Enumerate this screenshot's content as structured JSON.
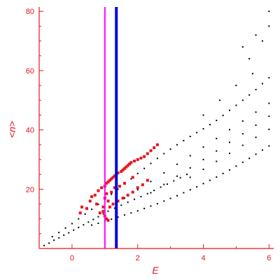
{
  "chart_data": {
    "type": "scatter",
    "xlabel": "E",
    "ylabel": "<n>",
    "xlim": [
      -1.0,
      6.1
    ],
    "ylim": [
      0,
      81
    ],
    "xticks": [
      "0",
      "2",
      "4",
      "6"
    ],
    "yticks": [
      "20",
      "40",
      "60",
      "80"
    ],
    "grid": false,
    "legend": "none",
    "colors": {
      "axis": "#e8141c",
      "black_points": "#000000",
      "red_points": "#e8141c",
      "magenta_line": "#ff00ff",
      "blue_line": "#0000e6"
    },
    "vertical_lines": [
      {
        "color": "#ff00ff",
        "x": 1.0
      },
      {
        "color": "#0000e6",
        "x": 1.35
      }
    ],
    "series": [
      {
        "color": "#000000",
        "marker": "dot",
        "points": [
          [
            -0.85,
            1
          ],
          [
            -0.7,
            1.8
          ],
          [
            -0.55,
            2.8
          ],
          [
            -0.4,
            3.6
          ],
          [
            -0.25,
            4.5
          ],
          [
            -0.1,
            5.3
          ],
          [
            0.05,
            6.2
          ],
          [
            0.2,
            7.1
          ],
          [
            0.35,
            8
          ],
          [
            0.5,
            8.9
          ],
          [
            0.65,
            9.8
          ],
          [
            0.8,
            10.7
          ],
          [
            0.95,
            11.7
          ],
          [
            1.1,
            12.6
          ],
          [
            1.3,
            13.6
          ],
          [
            1.5,
            14.6
          ],
          [
            1.7,
            15.6
          ],
          [
            1.9,
            16.6
          ],
          [
            2.1,
            17.5
          ],
          [
            2.3,
            18.5
          ],
          [
            2.5,
            19.6
          ],
          [
            2.7,
            20.7
          ],
          [
            2.9,
            21.7
          ],
          [
            3.1,
            22.8
          ],
          [
            3.3,
            23.9
          ],
          [
            3.5,
            25
          ],
          [
            -0.6,
            4
          ],
          [
            -0.4,
            5.4
          ],
          [
            -0.2,
            6.9
          ],
          [
            0,
            8.4
          ],
          [
            0.2,
            10
          ],
          [
            0.4,
            11.6
          ],
          [
            0.6,
            13.2
          ],
          [
            0.8,
            14.9
          ],
          [
            1,
            16.6
          ],
          [
            1.2,
            18.3
          ],
          [
            1.4,
            20
          ],
          [
            1.6,
            21.8
          ],
          [
            1.8,
            23.5
          ],
          [
            2,
            25.3
          ],
          [
            2.2,
            27
          ],
          [
            2.4,
            28.7
          ],
          [
            2.6,
            30.4
          ],
          [
            2.8,
            32
          ],
          [
            3,
            33.5
          ],
          [
            3.2,
            35
          ],
          [
            3.4,
            36.4
          ],
          [
            3.6,
            37.8
          ],
          [
            3.8,
            39.1
          ],
          [
            4,
            40.4
          ],
          [
            4.2,
            41.8
          ],
          [
            4.4,
            43.2
          ],
          [
            4.6,
            44.9
          ],
          [
            4.8,
            46.6
          ],
          [
            5,
            48.3
          ],
          [
            5.2,
            50
          ],
          [
            5.4,
            51.8
          ],
          [
            5.6,
            53.6
          ],
          [
            5.8,
            55.6
          ],
          [
            6,
            57.6
          ],
          [
            0.6,
            7.9
          ],
          [
            0.8,
            8.5
          ],
          [
            1,
            9.2
          ],
          [
            1.2,
            9.9
          ],
          [
            1.4,
            10.6
          ],
          [
            1.6,
            11.3
          ],
          [
            1.8,
            12
          ],
          [
            2,
            12.7
          ],
          [
            2.2,
            13.5
          ],
          [
            2.4,
            14.3
          ],
          [
            2.6,
            15.1
          ],
          [
            2.8,
            16
          ],
          [
            3,
            16.9
          ],
          [
            3.2,
            17.8
          ],
          [
            3.4,
            18.8
          ],
          [
            3.6,
            19.8
          ],
          [
            3.8,
            20.8
          ],
          [
            4,
            21.9
          ],
          [
            4.2,
            23
          ],
          [
            4.4,
            24.1
          ],
          [
            4.6,
            25.3
          ],
          [
            4.8,
            26.5
          ],
          [
            5,
            27.8
          ],
          [
            5.2,
            29.1
          ],
          [
            5.4,
            30.4
          ],
          [
            5.6,
            31.8
          ],
          [
            5.8,
            33.2
          ],
          [
            6,
            34.6
          ],
          [
            1.6,
            17
          ],
          [
            2,
            19.8
          ],
          [
            2.4,
            22.6
          ],
          [
            2.8,
            25.5
          ],
          [
            3.2,
            28.4
          ],
          [
            3.6,
            31.3
          ],
          [
            4,
            34.2
          ],
          [
            4.4,
            37.1
          ],
          [
            4.8,
            40.1
          ],
          [
            5.2,
            43
          ],
          [
            5.6,
            46
          ],
          [
            6,
            49
          ],
          [
            2.4,
            18.8
          ],
          [
            2.8,
            21.6
          ],
          [
            3.2,
            24.4
          ],
          [
            3.6,
            27.2
          ],
          [
            4,
            30
          ],
          [
            4.4,
            32.9
          ],
          [
            4.8,
            35.8
          ],
          [
            5.2,
            38.7
          ],
          [
            5.6,
            41.6
          ],
          [
            6,
            44.6
          ],
          [
            3.6,
            24
          ],
          [
            4,
            26.7
          ],
          [
            4.4,
            29.4
          ],
          [
            4.8,
            32.1
          ],
          [
            5.2,
            34.8
          ],
          [
            5.6,
            37.5
          ],
          [
            6,
            40.2
          ],
          [
            4.0,
            45
          ],
          [
            4.5,
            50
          ],
          [
            5.0,
            55
          ],
          [
            5.5,
            59
          ],
          [
            5.2,
            68
          ],
          [
            5.6,
            72
          ],
          [
            6,
            75
          ],
          [
            6,
            80
          ],
          [
            5.8,
            70
          ],
          [
            5.4,
            64
          ]
        ]
      },
      {
        "color": "#e8141c",
        "marker": "square",
        "points": [
          [
            0.25,
            12
          ],
          [
            0.3,
            14
          ],
          [
            0.45,
            13.5
          ],
          [
            0.55,
            16
          ],
          [
            0.6,
            17.5
          ],
          [
            0.7,
            18
          ],
          [
            0.75,
            15
          ],
          [
            0.8,
            19.5
          ],
          [
            0.85,
            12
          ],
          [
            0.9,
            20.5
          ],
          [
            0.95,
            14
          ],
          [
            1,
            21
          ],
          [
            1,
            17
          ],
          [
            1.05,
            22
          ],
          [
            1.05,
            18.5
          ],
          [
            1.1,
            22.5
          ],
          [
            1.1,
            16
          ],
          [
            1.15,
            23
          ],
          [
            1.2,
            23.5
          ],
          [
            1.2,
            19
          ],
          [
            1.25,
            24
          ],
          [
            1.3,
            24.5
          ],
          [
            1.3,
            20.5
          ],
          [
            1.35,
            25
          ],
          [
            1.4,
            25.5
          ],
          [
            1.45,
            21
          ],
          [
            1.5,
            26
          ],
          [
            1.55,
            26.5
          ],
          [
            1.6,
            27
          ],
          [
            1.6,
            22
          ],
          [
            1.65,
            27.5
          ],
          [
            1.7,
            28
          ],
          [
            1.75,
            28.5
          ],
          [
            1.8,
            29
          ],
          [
            1.85,
            24
          ],
          [
            1.9,
            29.5
          ],
          [
            2,
            30
          ],
          [
            2.1,
            30.5
          ],
          [
            2.2,
            31
          ],
          [
            2.3,
            32
          ],
          [
            2.4,
            33
          ],
          [
            2.5,
            34
          ],
          [
            2.6,
            35
          ],
          [
            0.95,
            12.5
          ],
          [
            1,
            11
          ],
          [
            1.05,
            10
          ],
          [
            1.1,
            9.5
          ],
          [
            1.15,
            14
          ],
          [
            1.25,
            15
          ],
          [
            1.4,
            16
          ],
          [
            1.55,
            17
          ],
          [
            1.7,
            18
          ],
          [
            1.85,
            19
          ],
          [
            2,
            20.5
          ],
          [
            2.15,
            21.5
          ],
          [
            2.3,
            23
          ]
        ]
      }
    ]
  }
}
